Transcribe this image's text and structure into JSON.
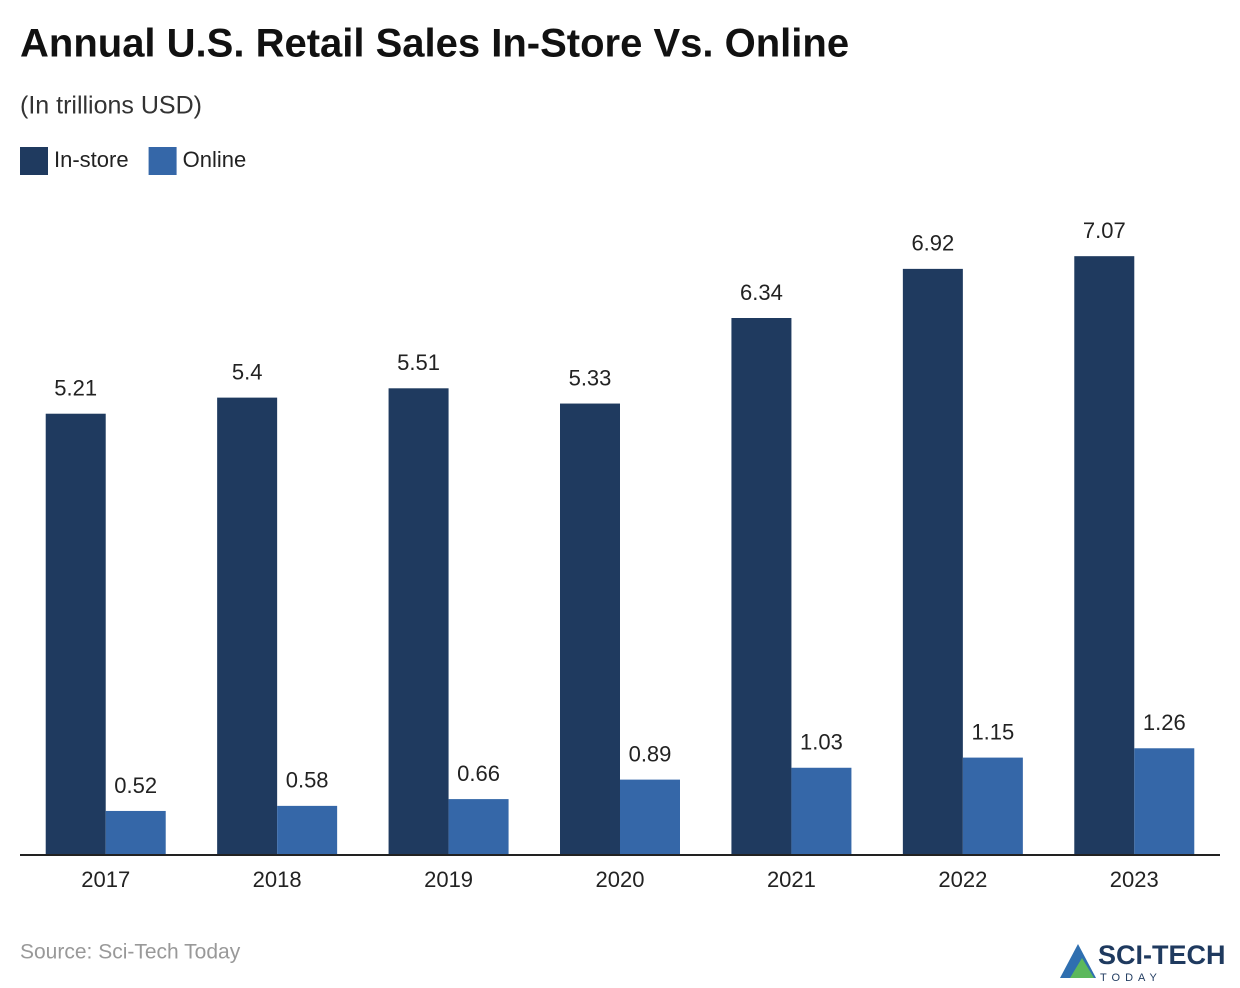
{
  "chart_data": {
    "type": "bar",
    "title": "Annual U.S. Retail Sales In-Store Vs. Online",
    "subtitle": "(In trillions USD)",
    "categories": [
      "2017",
      "2018",
      "2019",
      "2020",
      "2021",
      "2022",
      "2023"
    ],
    "series": [
      {
        "name": "In-store",
        "color": "#1f3a5f",
        "values": [
          5.21,
          5.4,
          5.51,
          5.33,
          6.34,
          6.92,
          7.07
        ]
      },
      {
        "name": "Online",
        "color": "#3567a8",
        "values": [
          0.52,
          0.58,
          0.66,
          0.89,
          1.03,
          1.15,
          1.26
        ]
      }
    ],
    "source": "Source: Sci-Tech Today",
    "logo": {
      "name": "SCI-TECH",
      "tagline": "TODAY"
    }
  }
}
